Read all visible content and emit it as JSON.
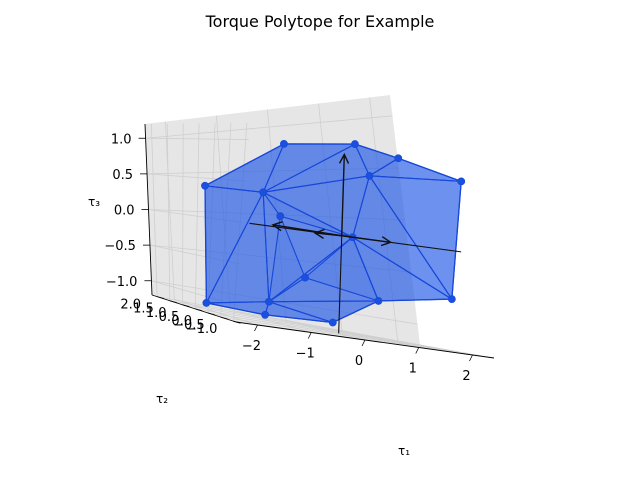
{
  "chart_data": {
    "type": "scatter",
    "projection": "3d",
    "title": "Torque Polytope for Example",
    "xlabel": "τ₁",
    "ylabel": "τ₂",
    "zlabel": "τ₃",
    "xticks": [
      "−2",
      "−1",
      "0",
      "1",
      "2"
    ],
    "yticks": [
      "−1.0",
      "−0.5",
      "0.0",
      "0.5",
      "1.0",
      "1.5",
      "2.0"
    ],
    "zticks": [
      "−1.0",
      "−0.5",
      "0.0",
      "0.5",
      "1.0"
    ],
    "xlim": [
      -2.4,
      2.4
    ],
    "ylim": [
      -1.1,
      2.2
    ],
    "zlim": [
      -1.2,
      1.2
    ],
    "grid": true,
    "colors": {
      "face": "#1f55e6",
      "edge": "#1747d9",
      "vertex": "#1a50dd",
      "arrow": "#111111"
    },
    "vertices": [
      {
        "x": -1.3,
        "y": -0.3,
        "z": 1.05
      },
      {
        "x": 0.4,
        "y": -0.9,
        "z": 1.15
      },
      {
        "x": -0.2,
        "y": -0.6,
        "z": 1.2
      },
      {
        "x": 2.3,
        "y": 0.2,
        "z": 0.8
      },
      {
        "x": 0.6,
        "y": 0.2,
        "z": 0.75
      },
      {
        "x": -2.1,
        "y": 0.8,
        "z": 0.4
      },
      {
        "x": -1.3,
        "y": 0.3,
        "z": 0.4
      },
      {
        "x": -0.7,
        "y": 0.8,
        "z": 0.1
      },
      {
        "x": 0.2,
        "y": 0.0,
        "z": 0.0
      },
      {
        "x": 2.2,
        "y": 0.3,
        "z": -0.6
      },
      {
        "x": -0.4,
        "y": 0.5,
        "z": -0.6
      },
      {
        "x": 0.9,
        "y": 0.4,
        "z": -0.75
      },
      {
        "x": -2.2,
        "y": 0.5,
        "z": -1.1
      },
      {
        "x": -1.2,
        "y": 0.2,
        "z": -0.95
      },
      {
        "x": -0.9,
        "y": 1.0,
        "z": -1.15
      },
      {
        "x": 0.2,
        "y": 0.7,
        "z": -1.1
      }
    ],
    "arrows": [
      {
        "dx": 0.0,
        "dy": 0.0,
        "dz": 1.0
      },
      {
        "dx": 0.9,
        "dy": 0.0,
        "dz": 0.0
      },
      {
        "dx": -1.0,
        "dy": 0.5,
        "dz": 0.0
      },
      {
        "dx": -0.6,
        "dy": -0.2,
        "dz": 0.0
      }
    ]
  }
}
